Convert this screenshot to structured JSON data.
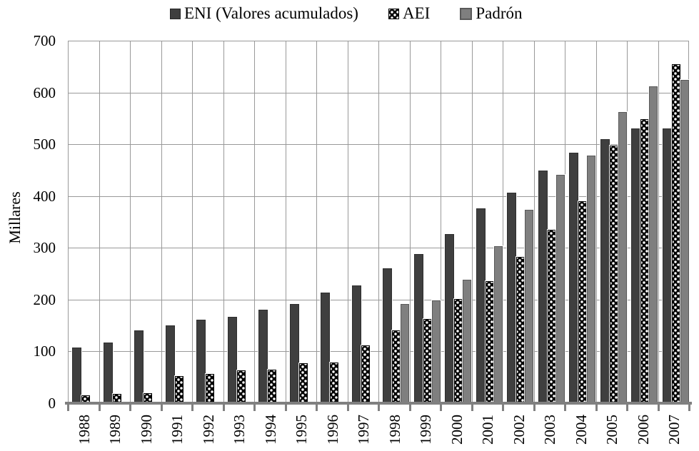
{
  "chart_data": {
    "type": "bar",
    "title": "",
    "ylabel": "Millares",
    "xlabel": "",
    "ylim": [
      0,
      700
    ],
    "ytick_step": 100,
    "grid": "both",
    "legend_position": "top",
    "categories": [
      "1988",
      "1989",
      "1990",
      "1991",
      "1992",
      "1993",
      "1994",
      "1995",
      "1996",
      "1997",
      "1998",
      "1999",
      "2000",
      "2001",
      "2002",
      "2003",
      "2004",
      "2005",
      "2006",
      "2007"
    ],
    "series": [
      {
        "name": "ENI (Valores acumulados)",
        "style": "solid-dark",
        "color": "#3f3f3f",
        "values": [
          107,
          117,
          141,
          150,
          161,
          167,
          180,
          192,
          213,
          227,
          261,
          288,
          327,
          376,
          406,
          449,
          483,
          510,
          531,
          531
        ]
      },
      {
        "name": "AEI",
        "style": "black-white-checker-pattern",
        "color": "#000000",
        "values": [
          15,
          18,
          19,
          52,
          56,
          63,
          65,
          77,
          78,
          112,
          140,
          163,
          201,
          235,
          283,
          335,
          390,
          497,
          549,
          654
        ]
      },
      {
        "name": "Padrón",
        "style": "solid-gray",
        "color": "#7f7f7f",
        "values": [
          null,
          null,
          null,
          null,
          null,
          null,
          null,
          null,
          null,
          null,
          192,
          198,
          238,
          303,
          373,
          441,
          478,
          562,
          612,
          624
        ]
      }
    ]
  },
  "colors": {
    "bar_eni": "#3f3f3f",
    "bar_aei": "#000000",
    "bar_padron": "#7f7f7f",
    "gridline": "#999999",
    "axis": "#808080",
    "background": "#ffffff",
    "text": "#000000"
  }
}
